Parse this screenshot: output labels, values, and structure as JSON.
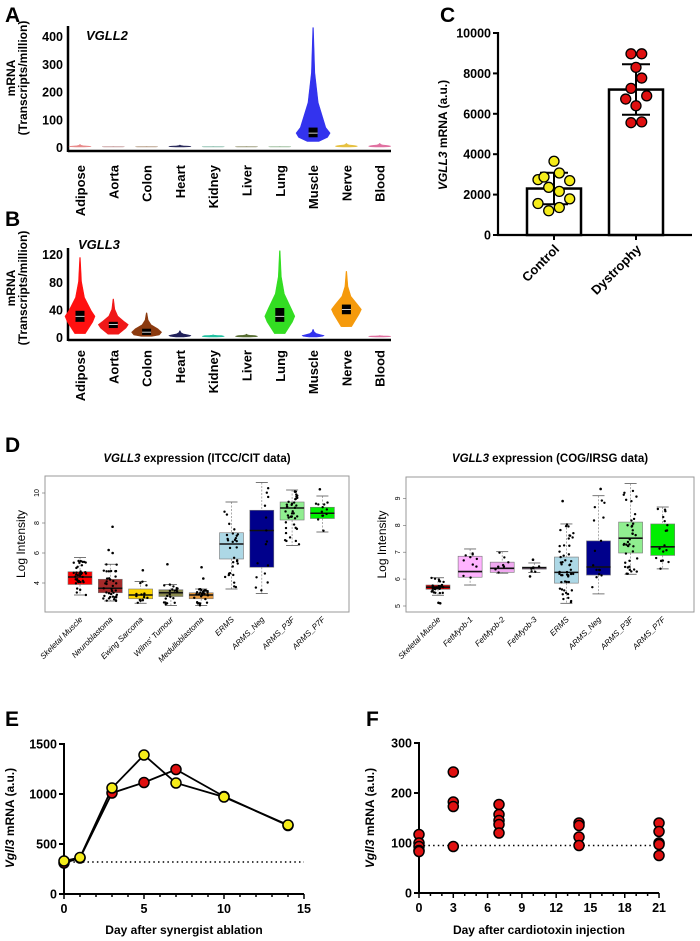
{
  "panel_labels": {
    "a": "A",
    "b": "B",
    "c": "C",
    "d": "D",
    "e": "E",
    "f": "F"
  },
  "chart_data": [
    {
      "type": "violin",
      "title": "VGLL2",
      "ylabel_line1": "mRNA",
      "ylabel_line2": "(Transcripts/million)",
      "ylim": [
        0,
        430
      ],
      "y_ticks": [
        0,
        100,
        200,
        300,
        400
      ],
      "categories": [
        "Adipose",
        "Aorta",
        "Colon",
        "Heart",
        "Kidney",
        "Liver",
        "Lung",
        "Muscle",
        "Nerve",
        "Blood"
      ],
      "colors": [
        "#e88a8a",
        "#c9a0a0",
        "#b9a08a",
        "#2a2a5a",
        "#90c0b0",
        "#a0a080",
        "#a0c0a0",
        "#3333ee",
        "#e6c040",
        "#e070a0"
      ],
      "values": [
        {
          "min": 0,
          "q1": 1,
          "med": 2,
          "q3": 3,
          "max": 9,
          "box": false
        },
        {
          "min": 0,
          "q1": 0.5,
          "med": 1,
          "q3": 1.5,
          "max": 2,
          "box": false
        },
        {
          "min": 0,
          "q1": 0.5,
          "med": 1,
          "q3": 1.5,
          "max": 2,
          "box": false
        },
        {
          "min": 0,
          "q1": 1,
          "med": 2,
          "q3": 3,
          "max": 7,
          "box": false
        },
        {
          "min": 0,
          "q1": 0.5,
          "med": 1,
          "q3": 1.5,
          "max": 2,
          "box": false
        },
        {
          "min": 0,
          "q1": 0.5,
          "med": 1,
          "q3": 1.5,
          "max": 2,
          "box": false
        },
        {
          "min": 0,
          "q1": 0.5,
          "med": 1,
          "q3": 1.5,
          "max": 2,
          "box": false
        },
        {
          "min": 20,
          "q1": 35,
          "med": 50,
          "q3": 70,
          "max": 430,
          "box": true
        },
        {
          "min": 0,
          "q1": 1,
          "med": 3,
          "q3": 5,
          "max": 13,
          "box": false
        },
        {
          "min": 0,
          "q1": 1,
          "med": 3,
          "q3": 5,
          "max": 13,
          "box": false
        }
      ]
    },
    {
      "type": "violin",
      "title": "VGLL3",
      "ylabel_line1": "mRNA",
      "ylabel_line2": "(Transcripts/million)",
      "ylim": [
        0,
        125
      ],
      "y_ticks": [
        0,
        40,
        80,
        120
      ],
      "categories": [
        "Adipose",
        "Aorta",
        "Colon",
        "Heart",
        "Kidney",
        "Liver",
        "Lung",
        "Muscle",
        "Nerve",
        "Blood"
      ],
      "colors": [
        "#ff1010",
        "#f01818",
        "#8b3a0f",
        "#20205a",
        "#20c0a0",
        "#556b2f",
        "#33dd22",
        "#3333ee",
        "#f59a0c",
        "#e070a0"
      ],
      "values": [
        {
          "min": 5,
          "q1": 22,
          "med": 30,
          "q3": 38,
          "max": 115,
          "box": true
        },
        {
          "min": 4,
          "q1": 13,
          "med": 18,
          "q3": 22,
          "max": 55,
          "box": true
        },
        {
          "min": 1,
          "q1": 3,
          "med": 7,
          "q3": 12,
          "max": 35,
          "box": true
        },
        {
          "min": 0,
          "q1": 1,
          "med": 2,
          "q3": 3,
          "max": 9,
          "box": false
        },
        {
          "min": 0,
          "q1": 0.5,
          "med": 1,
          "q3": 2,
          "max": 3,
          "box": false
        },
        {
          "min": 0,
          "q1": 0.5,
          "med": 1,
          "q3": 2,
          "max": 4,
          "box": false
        },
        {
          "min": 5,
          "q1": 22,
          "med": 30,
          "q3": 42,
          "max": 125,
          "box": true
        },
        {
          "min": 0,
          "q1": 1,
          "med": 2,
          "q3": 3,
          "max": 11,
          "box": false
        },
        {
          "min": 15,
          "q1": 33,
          "med": 40,
          "q3": 47,
          "max": 95,
          "box": true
        },
        {
          "min": 0,
          "q1": 0.5,
          "med": 1,
          "q3": 1.5,
          "max": 2,
          "box": false
        }
      ]
    },
    {
      "type": "bar",
      "ylabel_gene": "VGLL3",
      "ylabel_rest": " mRNA (a.u.)",
      "ylim": [
        0,
        10000
      ],
      "y_ticks": [
        0,
        2000,
        4000,
        6000,
        8000,
        10000
      ],
      "categories": [
        "Control",
        "Dystrophy"
      ],
      "means": [
        2300,
        7200
      ],
      "sd": [
        780,
        1250
      ],
      "point_colors": [
        "#f5ec1a",
        "#e01010"
      ],
      "points": [
        [
          3650,
          3070,
          2740,
          2870,
          2690,
          2360,
          2160,
          1790,
          1560,
          1360,
          1200
        ],
        [
          8970,
          8970,
          8300,
          7770,
          7260,
          6890,
          6730,
          6400,
          5600,
          5560
        ]
      ]
    },
    {
      "type": "boxplot",
      "title_gene": "VGLL3",
      "title_rest": " expression (ITCC/CIT data)",
      "ylabel": "Log Intensity",
      "ylim": [
        2.07,
        11.1
      ],
      "y_ticks": [
        4,
        6,
        8,
        10
      ],
      "categories": [
        "Skeletal Muscle",
        "Neuroblastoma",
        "Ewing Sarcoma",
        "Wilms' Tumour",
        "Medulloblastoma",
        "ERMS",
        "ARMS_Neg",
        "ARMS_P3F",
        "ARMS_P7F"
      ],
      "colors": [
        "#ff0000",
        "#a52a2a",
        "#ffd700",
        "#8b8b4e",
        "#e89a3c",
        "#add8e6",
        "#00008b",
        "#90ee90",
        "#00ee00"
      ],
      "boxes": [
        {
          "low": 3.2,
          "q1": 3.9,
          "med": 4.4,
          "q3": 4.75,
          "high": 5.7,
          "n": 40,
          "outliers": []
        },
        {
          "low": 2.8,
          "q1": 3.35,
          "med": 3.65,
          "q3": 4.25,
          "high": 5.25,
          "n": 40,
          "outliers": [
            6.0,
            6.2,
            7.75
          ]
        },
        {
          "low": 2.65,
          "q1": 2.95,
          "med": 3.2,
          "q3": 3.6,
          "high": 4.1,
          "n": 15,
          "outliers": [
            4.85
          ]
        },
        {
          "low": 2.5,
          "q1": 3.1,
          "med": 3.35,
          "q3": 3.55,
          "high": 3.9,
          "n": 20,
          "outliers": [
            5.25
          ]
        },
        {
          "low": 2.5,
          "q1": 2.95,
          "med": 3.2,
          "q3": 3.35,
          "high": 3.6,
          "n": 30,
          "outliers": [
            4.3,
            5.05
          ]
        },
        {
          "low": 3.6,
          "q1": 5.6,
          "med": 6.6,
          "q3": 7.35,
          "high": 9.4,
          "n": 30,
          "outliers": []
        },
        {
          "low": 3.3,
          "q1": 5.05,
          "med": 7.5,
          "q3": 8.85,
          "high": 10.7,
          "n": 15,
          "outliers": []
        },
        {
          "low": 6.5,
          "q1": 8.2,
          "med": 9.0,
          "q3": 9.4,
          "high": 10.2,
          "n": 40,
          "outliers": []
        },
        {
          "low": 7.4,
          "q1": 8.3,
          "med": 8.65,
          "q3": 9.05,
          "high": 9.8,
          "n": 12,
          "outliers": [
            10.25
          ]
        }
      ]
    },
    {
      "type": "boxplot",
      "title_gene": "VGLL3",
      "title_rest": " expression (COG/IRSG data)",
      "ylabel": "Log Intensity",
      "ylim": [
        4.78,
        9.8
      ],
      "y_ticks": [
        5,
        6,
        7,
        8,
        9
      ],
      "categories": [
        "Skeletal Muscle",
        "FetMyob-1",
        "FetMyob-2",
        "FetMyob-3",
        "ERMS",
        "ARMS_Neg",
        "ARMS_P3F",
        "ARMS_P7F"
      ],
      "colors": [
        "#cc0000",
        "#ffb3ff",
        "#f0a8f0",
        "#dda0dd",
        "#add8e6",
        "#00008b",
        "#90ee90",
        "#00ee00"
      ],
      "boxes": [
        {
          "low": 5.4,
          "q1": 5.62,
          "med": 5.7,
          "q3": 5.78,
          "high": 6.05,
          "n": 30,
          "outliers": [
            5.1,
            5.12
          ]
        },
        {
          "low": 5.78,
          "q1": 6.07,
          "med": 6.28,
          "q3": 6.85,
          "high": 7.12,
          "n": 10,
          "outliers": []
        },
        {
          "low": 6.22,
          "q1": 6.25,
          "med": 6.4,
          "q3": 6.63,
          "high": 7.02,
          "n": 8,
          "outliers": []
        },
        {
          "low": 6.25,
          "q1": 6.37,
          "med": 6.42,
          "q3": 6.45,
          "high": 6.6,
          "n": 6,
          "outliers": [
            6.1,
            6.72
          ]
        },
        {
          "low": 5.1,
          "q1": 5.85,
          "med": 6.25,
          "q3": 6.82,
          "high": 8.05,
          "n": 50,
          "outliers": [
            8.9
          ]
        },
        {
          "low": 5.45,
          "q1": 6.15,
          "med": 6.45,
          "q3": 7.42,
          "high": 9.1,
          "n": 15,
          "outliers": [
            9.35
          ]
        },
        {
          "low": 6.18,
          "q1": 6.97,
          "med": 7.52,
          "q3": 8.12,
          "high": 9.55,
          "n": 40,
          "outliers": []
        },
        {
          "low": 6.38,
          "q1": 6.88,
          "med": 7.2,
          "q3": 8.05,
          "high": 8.68,
          "n": 18,
          "outliers": []
        }
      ]
    },
    {
      "type": "line",
      "ylabel_gene": "Vgll3",
      "ylabel_rest": " mRNA (a.u.)",
      "xlabel": "Day after synergist ablation",
      "xlim": [
        0,
        15
      ],
      "ylim": [
        0,
        1500
      ],
      "x_ticks": [
        0,
        5,
        10,
        15
      ],
      "y_ticks": [
        0,
        500,
        1000,
        1500
      ],
      "baseline": 320,
      "series": [
        {
          "name": "red",
          "color": "#e01010",
          "x": [
            0,
            1,
            3,
            5,
            7,
            10,
            14
          ],
          "y": [
            310,
            360,
            1010,
            1115,
            1245,
            975,
            685
          ]
        },
        {
          "name": "yellow",
          "color": "#f5ec1a",
          "x": [
            0,
            1,
            3,
            5,
            7,
            10,
            14
          ],
          "y": [
            330,
            365,
            1060,
            1390,
            1110,
            970,
            690
          ]
        }
      ]
    },
    {
      "type": "scatter",
      "ylabel_gene": "Vgll3",
      "ylabel_rest": " mRNA (a.u.)",
      "xlabel": "Day after cardiotoxin injection",
      "xlim": [
        0,
        21
      ],
      "ylim": [
        0,
        300
      ],
      "x_ticks": [
        0,
        3,
        6,
        9,
        12,
        15,
        18,
        21
      ],
      "y_ticks": [
        0,
        100,
        200,
        300
      ],
      "baseline": 95,
      "color": "#e01010",
      "groups": [
        {
          "x": 0,
          "y": [
            117,
            100,
            93,
            85,
            83
          ]
        },
        {
          "x": 3,
          "y": [
            242,
            182,
            173,
            93
          ]
        },
        {
          "x": 7,
          "y": [
            177,
            157,
            145,
            137,
            120
          ]
        },
        {
          "x": 14,
          "y": [
            140,
            135,
            112,
            95
          ]
        },
        {
          "x": 21,
          "y": [
            140,
            123,
            100,
            97,
            75
          ]
        }
      ]
    }
  ]
}
